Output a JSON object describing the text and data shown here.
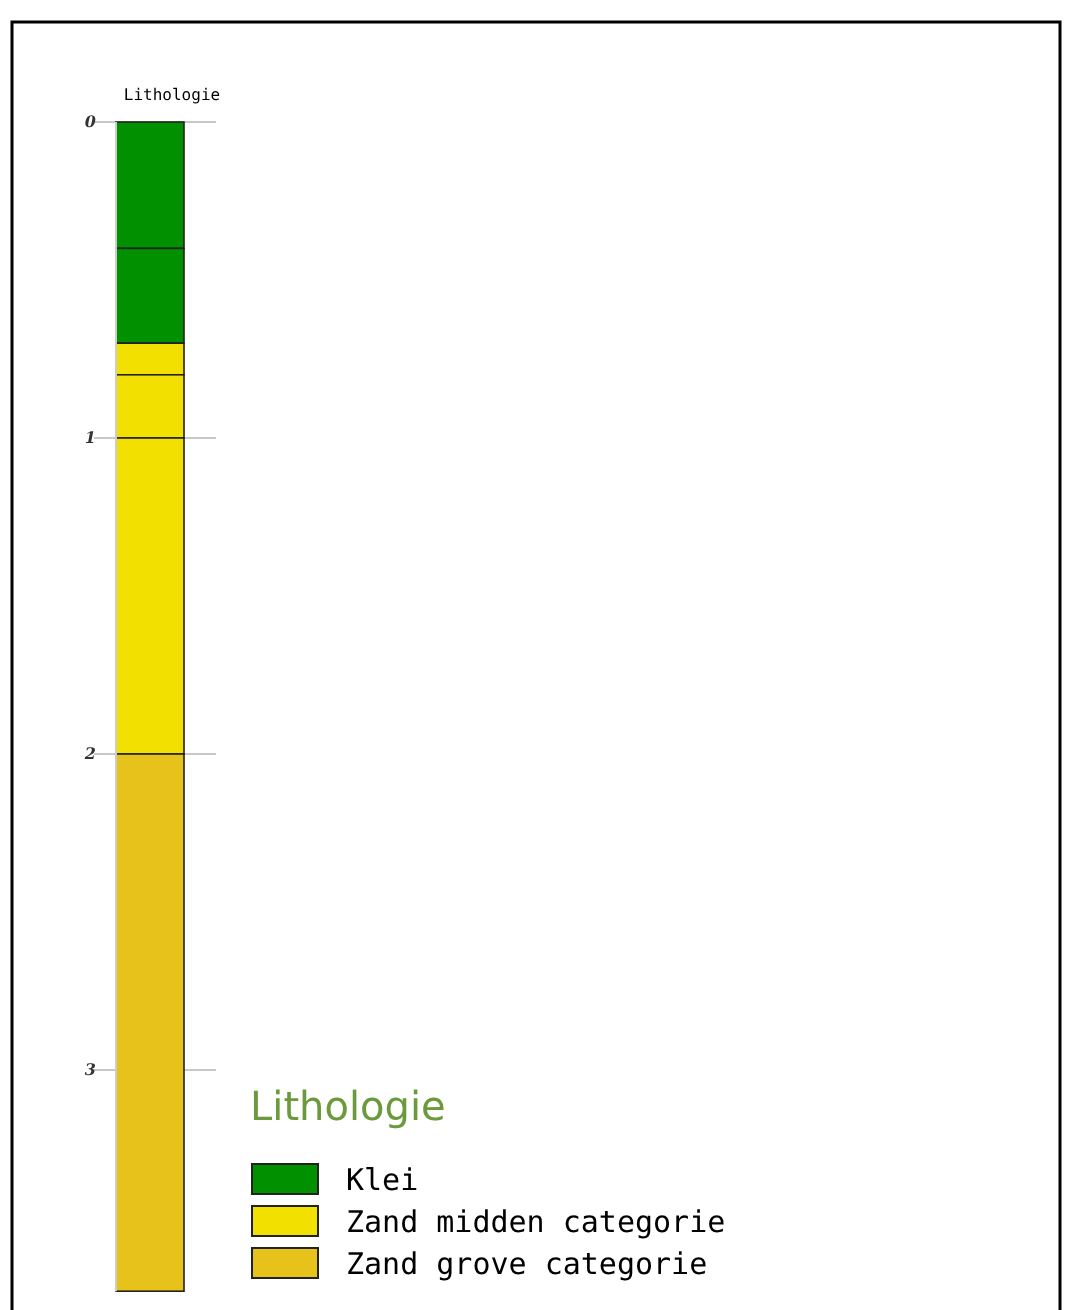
{
  "chart_data": {
    "type": "bar",
    "title": "Lithologie",
    "legend_title": "Lithologie",
    "categories": [
      null
    ],
    "stacked": true,
    "series": [
      {
        "name": "Klei",
        "color": "#009000",
        "values": [
          0.4
        ]
      },
      {
        "color": "#009000",
        "values": [
          0.3
        ]
      },
      {
        "name": "Zand midden categorie",
        "color": "#f2e000",
        "values": [
          0.1
        ]
      },
      {
        "color": "#f2e000",
        "values": [
          0.2
        ]
      },
      {
        "color": "#f2e000",
        "values": [
          1.0
        ]
      },
      {
        "name": "Zand grove categorie",
        "color": "#e6c21a",
        "values": [
          1.7
        ]
      }
    ],
    "ylim": [
      3.7,
      0
    ],
    "yticks": [
      0,
      1,
      2,
      3
    ],
    "grid": "y",
    "legend": "bottom right"
  }
}
